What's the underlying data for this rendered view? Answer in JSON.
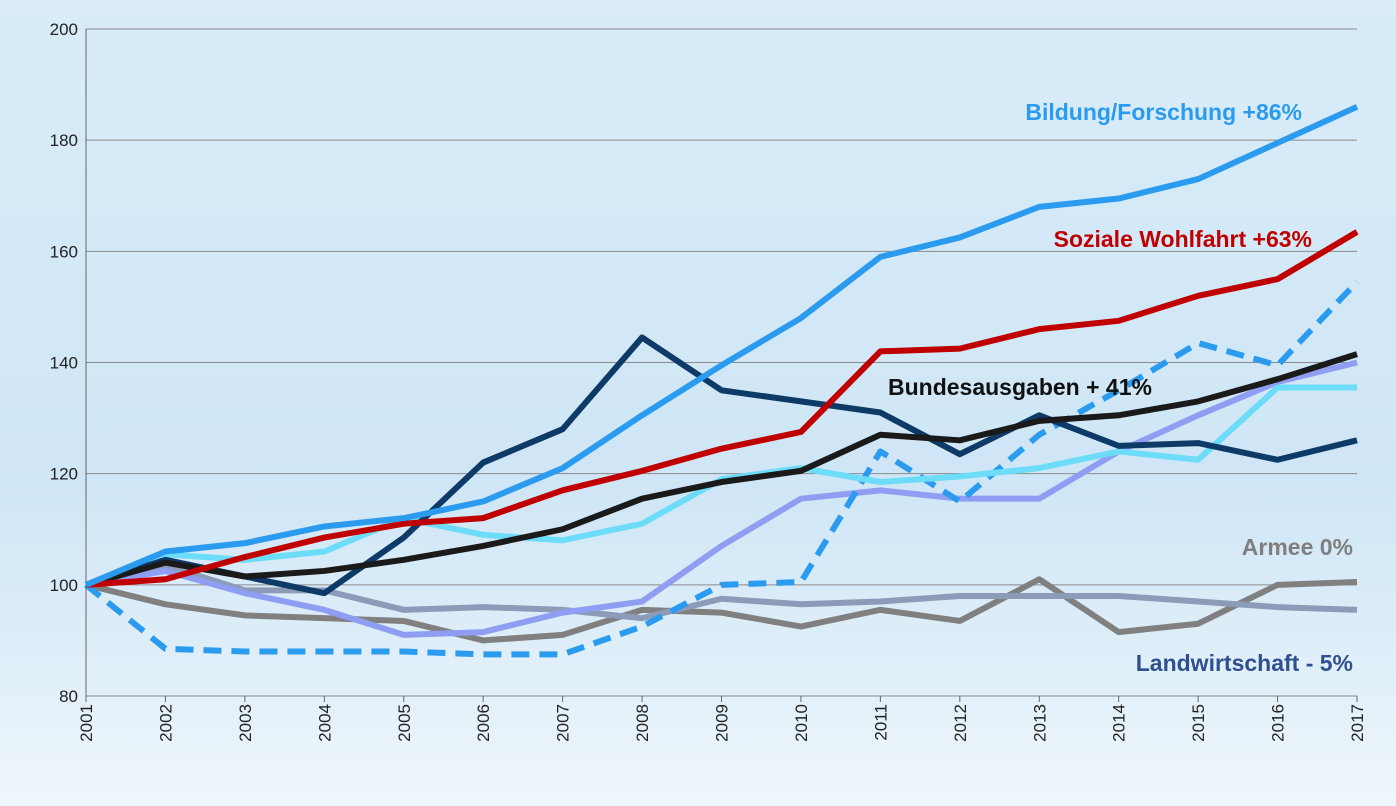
{
  "chart_data": {
    "type": "line",
    "x": [
      "2001",
      "2002",
      "2003",
      "2004",
      "2005",
      "2006",
      "2007",
      "2008",
      "2009",
      "2010",
      "2011",
      "2012",
      "2013",
      "2014",
      "2015",
      "2016",
      "2017"
    ],
    "ylim": [
      80,
      200
    ],
    "yticks": [
      80,
      100,
      120,
      140,
      160,
      180,
      200
    ],
    "grid": true,
    "series": [
      {
        "color": "#808080",
        "values": [
          100,
          96.5,
          94.5,
          94,
          93.5,
          90,
          91,
          95.5,
          95,
          92.5,
          95.5,
          93.5,
          101,
          91.5,
          93,
          100,
          100.5
        ]
      },
      {
        "color": "#8c9cb8",
        "values": [
          100,
          103.5,
          99,
          99,
          95.5,
          96,
          95.5,
          94,
          97.5,
          96.5,
          97,
          98,
          98,
          98,
          97,
          96,
          95.5
        ]
      },
      {
        "color": "#8f9ef2",
        "values": [
          100,
          102.5,
          98.5,
          95.5,
          91,
          91.5,
          95,
          97,
          107,
          115.5,
          117,
          115.5,
          115.5,
          124,
          130.5,
          136.5,
          140
        ]
      },
      {
        "color": "#2b9bef",
        "dashed": true,
        "values": [
          100,
          88.5,
          88,
          88,
          88,
          87.5,
          87.5,
          92.5,
          100,
          100.5,
          124,
          115,
          127,
          135,
          143.5,
          139.5,
          154.5
        ]
      },
      {
        "color": "#6ddcf8",
        "values": [
          100,
          105.5,
          104.5,
          106,
          112,
          109,
          108,
          111,
          119,
          121,
          118.5,
          119.5,
          121,
          124,
          122.5,
          135.5,
          135.5
        ]
      },
      {
        "color": "#0d3a66",
        "values": [
          100,
          104.5,
          101.5,
          98.5,
          108.5,
          122,
          128,
          144.5,
          135,
          133,
          131,
          123.5,
          130.5,
          125,
          125.5,
          122.5,
          126
        ]
      },
      {
        "color": "#1a1a1a",
        "values": [
          100,
          104,
          101.5,
          102.5,
          104.5,
          107,
          110,
          115.5,
          118.5,
          120.5,
          127,
          126,
          129.5,
          130.5,
          133,
          137,
          141.5
        ]
      },
      {
        "color": "#c00000",
        "values": [
          100,
          101,
          105,
          108.5,
          111,
          112,
          117,
          120.5,
          124.5,
          127.5,
          142,
          142.5,
          146,
          147.5,
          152,
          155,
          163.5
        ]
      },
      {
        "color": "#2b9bef",
        "values": [
          100,
          106,
          107.5,
          110.5,
          112,
          115,
          121,
          130.5,
          139.5,
          148,
          159,
          162.5,
          168,
          169.5,
          173,
          179.5,
          186
        ]
      }
    ],
    "annotations": [
      {
        "text": "Bildung/Forschung  +86%",
        "color": "#2b9bef"
      },
      {
        "text": "Soziale Wohlfahrt  +63%",
        "color": "#c00000"
      },
      {
        "text": "Bundesausgaben + 41%",
        "color": "#111111"
      },
      {
        "text": "Armee 0%",
        "color": "#7f7f7f"
      },
      {
        "text": "Landwirtschaft - 5%",
        "color": "#2f4f8f"
      }
    ]
  }
}
